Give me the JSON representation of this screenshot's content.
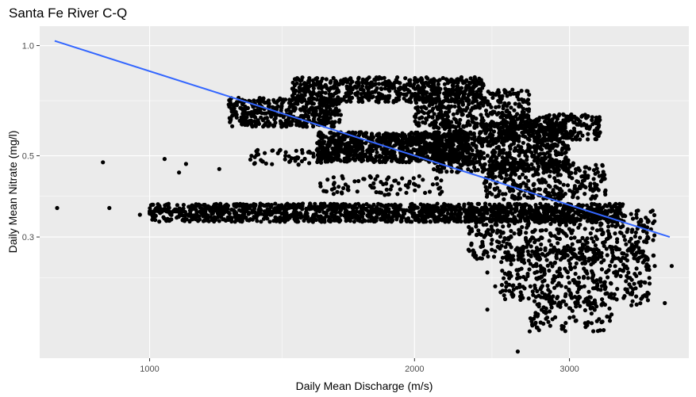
{
  "chart_data": {
    "type": "scatter",
    "title": "Santa Fe River C-Q",
    "xlabel": "Daily Mean Discharge (m/s)",
    "ylabel": "Daily Mean Nitrate (mg/l)",
    "x_scale": "log10",
    "y_scale": "log10",
    "xlim": [
      750,
      4100
    ],
    "ylim": [
      0.14,
      1.13
    ],
    "x_ticks": [
      {
        "value": 1000,
        "label": "1000"
      },
      {
        "value": 2000,
        "label": "2000"
      },
      {
        "value": 3000,
        "label": "3000"
      }
    ],
    "y_ticks": [
      {
        "value": 0.3,
        "label": "0.3"
      },
      {
        "value": 0.5,
        "label": "0.5"
      },
      {
        "value": 1.0,
        "label": "1.0"
      }
    ],
    "grid": true,
    "legend": "none",
    "colors": {
      "panel": "#ebebeb",
      "grid": "#ffffff",
      "points": "#000000",
      "fit": "#3366ff"
    },
    "fit_line": {
      "x": [
        780,
        3900
      ],
      "y": [
        1.03,
        0.3
      ]
    },
    "point_clusters": [
      {
        "x_range": [
          1000,
          3450
        ],
        "y_range": [
          0.33,
          0.37
        ],
        "density": 1500
      },
      {
        "x_range": [
          2300,
          3750
        ],
        "y_range": [
          0.26,
          0.36
        ],
        "density": 500
      },
      {
        "x_range": [
          2500,
          3700
        ],
        "y_range": [
          0.195,
          0.28
        ],
        "density": 400
      },
      {
        "x_range": [
          2700,
          3350
        ],
        "y_range": [
          0.165,
          0.21
        ],
        "density": 110
      },
      {
        "x_range": [
          1450,
          2400
        ],
        "y_range": [
          0.7,
          0.82
        ],
        "density": 600
      },
      {
        "x_range": [
          2000,
          2700
        ],
        "y_range": [
          0.6,
          0.76
        ],
        "density": 350
      },
      {
        "x_range": [
          1230,
          1650
        ],
        "y_range": [
          0.6,
          0.72
        ],
        "density": 400
      },
      {
        "x_range": [
          1550,
          2300
        ],
        "y_range": [
          0.48,
          0.58
        ],
        "density": 900
      },
      {
        "x_range": [
          2100,
          3000
        ],
        "y_range": [
          0.45,
          0.62
        ],
        "density": 700
      },
      {
        "x_range": [
          2500,
          3250
        ],
        "y_range": [
          0.55,
          0.65
        ],
        "density": 250
      },
      {
        "x_range": [
          2400,
          3300
        ],
        "y_range": [
          0.38,
          0.48
        ],
        "density": 300
      },
      {
        "x_range": [
          1300,
          1600
        ],
        "y_range": [
          0.47,
          0.52
        ],
        "density": 60
      },
      {
        "x_range": [
          1550,
          2150
        ],
        "y_range": [
          0.39,
          0.44
        ],
        "density": 80
      }
    ],
    "outliers": [
      {
        "x": 785,
        "y": 0.36
      },
      {
        "x": 900,
        "y": 0.36
      },
      {
        "x": 885,
        "y": 0.48
      },
      {
        "x": 975,
        "y": 0.345
      },
      {
        "x": 1040,
        "y": 0.49
      },
      {
        "x": 1080,
        "y": 0.45
      },
      {
        "x": 1100,
        "y": 0.475
      },
      {
        "x": 1010,
        "y": 0.35
      },
      {
        "x": 1050,
        "y": 0.36
      },
      {
        "x": 1200,
        "y": 0.46
      },
      {
        "x": 1230,
        "y": 0.69
      },
      {
        "x": 2400,
        "y": 0.3
      },
      {
        "x": 2420,
        "y": 0.24
      },
      {
        "x": 2470,
        "y": 0.22
      },
      {
        "x": 2420,
        "y": 0.19
      },
      {
        "x": 2620,
        "y": 0.146
      },
      {
        "x": 3750,
        "y": 0.25
      },
      {
        "x": 3920,
        "y": 0.25
      },
      {
        "x": 3850,
        "y": 0.198
      },
      {
        "x": 3600,
        "y": 0.275
      }
    ]
  }
}
